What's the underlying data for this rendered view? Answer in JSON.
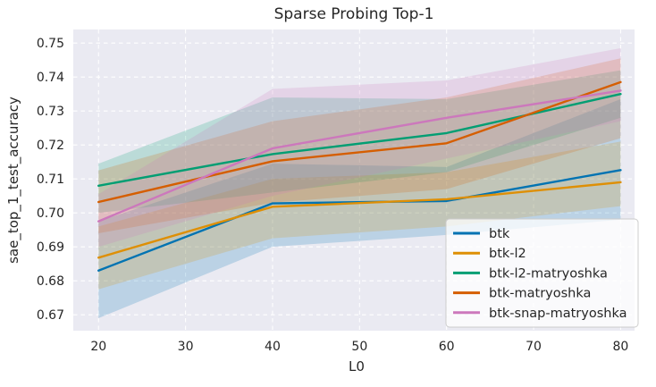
{
  "chart_data": {
    "type": "line",
    "title": "Sparse Probing Top-1",
    "xlabel": "L0",
    "ylabel": "sae_top_1_test_accuracy",
    "x": [
      20,
      40,
      60,
      80
    ],
    "xticks": [
      20,
      30,
      40,
      50,
      60,
      70,
      80
    ],
    "yticks": [
      0.67,
      0.68,
      0.69,
      0.7,
      0.71,
      0.72,
      0.73,
      0.74,
      0.75
    ],
    "xlim": [
      17.1,
      81.6
    ],
    "ylim": [
      0.6653,
      0.754
    ],
    "grid": "both",
    "grid_style": "white dashed on seaborn darkgrid",
    "legend_position": "lower right",
    "band_alpha": 0.2,
    "plot_bg_color": "#EAEAF2",
    "grid_color": "#FFFFFF",
    "text_color": "#262626",
    "legend_bg_color": "rgba(255,255,255,0.75)",
    "legend_border_color": "#CCCCCC",
    "series": [
      {
        "name": "btk",
        "color": "#0173B2",
        "values": [
          0.683,
          0.7028,
          0.7035,
          0.7126
        ],
        "ci_low": [
          0.669,
          0.69,
          0.6935,
          0.698
        ],
        "ci_high": [
          0.6975,
          0.7145,
          0.7135,
          0.7335
        ]
      },
      {
        "name": "btk-l2",
        "color": "#DE8F05",
        "values": [
          0.6868,
          0.7018,
          0.704,
          0.709
        ],
        "ci_low": [
          0.6775,
          0.6925,
          0.696,
          0.702
        ],
        "ci_high": [
          0.696,
          0.71,
          0.712,
          0.721
        ]
      },
      {
        "name": "btk-l2-matryoshka",
        "color": "#029E73",
        "values": [
          0.708,
          0.7173,
          0.7235,
          0.735
        ],
        "ci_low": [
          0.7,
          0.706,
          0.712,
          0.728
        ],
        "ci_high": [
          0.7145,
          0.734,
          0.7335,
          0.742
        ]
      },
      {
        "name": "btk-matryoshka",
        "color": "#D55E00",
        "values": [
          0.7032,
          0.7152,
          0.7205,
          0.7385
        ],
        "ci_low": [
          0.694,
          0.703,
          0.707,
          0.722
        ],
        "ci_high": [
          0.7125,
          0.727,
          0.734,
          0.7455
        ]
      },
      {
        "name": "btk-snap-matryoshka",
        "color": "#CC78BC",
        "values": [
          0.6975,
          0.719,
          0.728,
          0.736
        ],
        "ci_low": [
          0.69,
          0.705,
          0.716,
          0.727
        ],
        "ci_high": [
          0.7055,
          0.7365,
          0.739,
          0.7485
        ]
      }
    ]
  }
}
